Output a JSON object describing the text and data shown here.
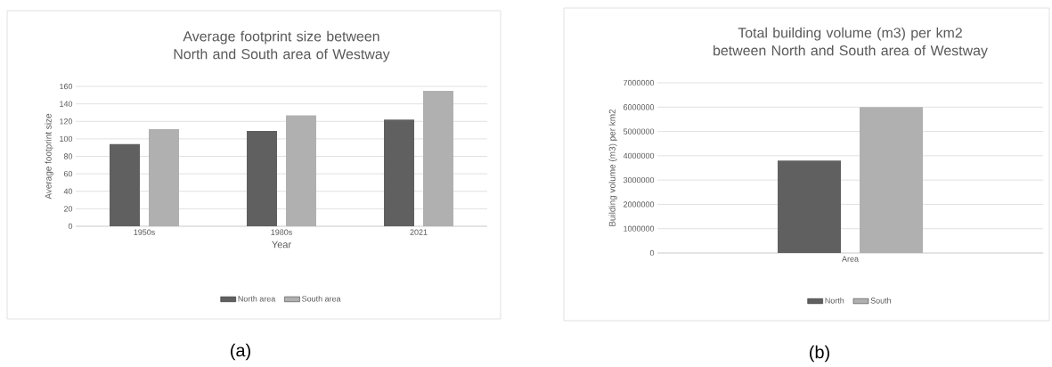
{
  "chart_data": [
    {
      "type": "bar",
      "title": "Average footprint size between North and South area of Westway",
      "xlabel": "Year",
      "ylabel": "Average footprint size",
      "categories": [
        "1950s",
        "1980s",
        "2021"
      ],
      "series": [
        {
          "name": "North area",
          "color": "#606060",
          "values": [
            94,
            109,
            122
          ]
        },
        {
          "name": "South area",
          "color": "#b0b0b0",
          "values": [
            111,
            127,
            155
          ]
        }
      ],
      "ylim": [
        0,
        160
      ],
      "yticks": [
        0,
        20,
        40,
        60,
        80,
        100,
        120,
        140,
        160
      ],
      "grid": "y",
      "legend": "bottom",
      "annotations": [
        "(a)"
      ]
    },
    {
      "type": "bar",
      "title": "Total building volume (m3) per km2 between North and South area of Westway",
      "ylabel": "Building volume (m3) per km2",
      "categories": [
        "Area"
      ],
      "series": [
        {
          "name": "North",
          "color": "#606060",
          "values": [
            3800000
          ]
        },
        {
          "name": "South",
          "color": "#b0b0b0",
          "values": [
            6000000
          ]
        }
      ],
      "ylim": [
        0,
        7000000
      ],
      "yticks": [
        0,
        1000000,
        2000000,
        3000000,
        4000000,
        5000000,
        6000000,
        7000000
      ],
      "grid": "y",
      "legend": "bottom",
      "annotations": [
        "(b)"
      ]
    }
  ]
}
